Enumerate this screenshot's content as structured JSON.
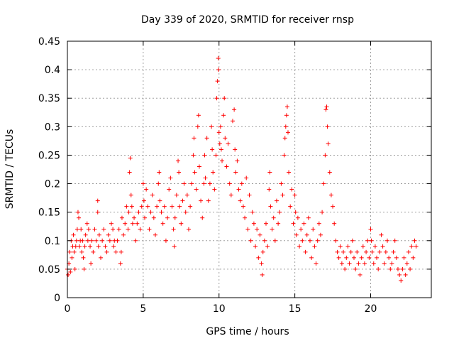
{
  "chart_data": {
    "type": "scatter",
    "title": "Day 339 of 2020, SRMTID for receiver rnsp",
    "xlabel": "GPS time / hours",
    "ylabel": "SRMTID / TECUs",
    "xlim": [
      0,
      24
    ],
    "ylim": [
      0,
      0.45
    ],
    "xticks": [
      0,
      5,
      10,
      15,
      20
    ],
    "yticks": [
      0,
      0.05,
      0.1,
      0.15,
      0.2,
      0.25,
      0.3,
      0.35,
      0.4,
      0.45
    ],
    "xtick_labels": [
      "0",
      "5",
      "10",
      "15",
      "20"
    ],
    "ytick_labels": [
      "0",
      "0.05",
      "0.1",
      "0.15",
      "0.2",
      "0.25",
      "0.3",
      "0.35",
      "0.4",
      "0.45"
    ],
    "grid": true,
    "marker": "+",
    "color": "#ff0000",
    "series": [
      {
        "name": "SRMTID",
        "points": [
          [
            0.0,
            0.05
          ],
          [
            0.05,
            0.04
          ],
          [
            0.1,
            0.06
          ],
          [
            0.15,
            0.08
          ],
          [
            0.2,
            0.045
          ],
          [
            0.25,
            0.1
          ],
          [
            0.3,
            0.07
          ],
          [
            0.35,
            0.09
          ],
          [
            0.4,
            0.11
          ],
          [
            0.45,
            0.08
          ],
          [
            0.5,
            0.05
          ],
          [
            0.55,
            0.09
          ],
          [
            0.6,
            0.1
          ],
          [
            0.65,
            0.12
          ],
          [
            0.7,
            0.15
          ],
          [
            0.75,
            0.14
          ],
          [
            0.8,
            0.09
          ],
          [
            0.85,
            0.1
          ],
          [
            0.9,
            0.12
          ],
          [
            0.95,
            0.08
          ],
          [
            1.0,
            0.1
          ],
          [
            1.05,
            0.07
          ],
          [
            1.1,
            0.05
          ],
          [
            1.15,
            0.09
          ],
          [
            1.2,
            0.11
          ],
          [
            1.3,
            0.13
          ],
          [
            1.35,
            0.1
          ],
          [
            1.4,
            0.12
          ],
          [
            1.5,
            0.09
          ],
          [
            1.55,
            0.06
          ],
          [
            1.6,
            0.1
          ],
          [
            1.7,
            0.08
          ],
          [
            1.8,
            0.12
          ],
          [
            1.9,
            0.1
          ],
          [
            2.0,
            0.15
          ],
          [
            2.0,
            0.17
          ],
          [
            2.05,
            0.09
          ],
          [
            2.1,
            0.11
          ],
          [
            2.2,
            0.07
          ],
          [
            2.3,
            0.1
          ],
          [
            2.4,
            0.12
          ],
          [
            2.5,
            0.09
          ],
          [
            2.6,
            0.08
          ],
          [
            2.7,
            0.11
          ],
          [
            2.8,
            0.1
          ],
          [
            2.9,
            0.13
          ],
          [
            3.0,
            0.12
          ],
          [
            3.05,
            0.09
          ],
          [
            3.1,
            0.1
          ],
          [
            3.2,
            0.08
          ],
          [
            3.3,
            0.1
          ],
          [
            3.4,
            0.12
          ],
          [
            3.5,
            0.06
          ],
          [
            3.55,
            0.08
          ],
          [
            3.6,
            0.14
          ],
          [
            3.7,
            0.11
          ],
          [
            3.8,
            0.13
          ],
          [
            3.9,
            0.16
          ],
          [
            4.0,
            0.12
          ],
          [
            4.05,
            0.15
          ],
          [
            4.1,
            0.22
          ],
          [
            4.15,
            0.245
          ],
          [
            4.2,
            0.18
          ],
          [
            4.25,
            0.16
          ],
          [
            4.3,
            0.13
          ],
          [
            4.4,
            0.14
          ],
          [
            4.5,
            0.1
          ],
          [
            4.6,
            0.13
          ],
          [
            4.7,
            0.15
          ],
          [
            4.8,
            0.12
          ],
          [
            4.9,
            0.16
          ],
          [
            5.0,
            0.2
          ],
          [
            5.05,
            0.17
          ],
          [
            5.1,
            0.14
          ],
          [
            5.2,
            0.19
          ],
          [
            5.3,
            0.16
          ],
          [
            5.4,
            0.12
          ],
          [
            5.5,
            0.15
          ],
          [
            5.6,
            0.18
          ],
          [
            5.7,
            0.14
          ],
          [
            5.8,
            0.11
          ],
          [
            5.9,
            0.16
          ],
          [
            6.0,
            0.2
          ],
          [
            6.05,
            0.22
          ],
          [
            6.1,
            0.17
          ],
          [
            6.2,
            0.15
          ],
          [
            6.3,
            0.13
          ],
          [
            6.4,
            0.16
          ],
          [
            6.5,
            0.1
          ],
          [
            6.6,
            0.14
          ],
          [
            6.7,
            0.19
          ],
          [
            6.8,
            0.21
          ],
          [
            6.9,
            0.16
          ],
          [
            7.0,
            0.12
          ],
          [
            7.05,
            0.09
          ],
          [
            7.1,
            0.14
          ],
          [
            7.2,
            0.18
          ],
          [
            7.3,
            0.24
          ],
          [
            7.35,
            0.22
          ],
          [
            7.4,
            0.16
          ],
          [
            7.5,
            0.13
          ],
          [
            7.6,
            0.17
          ],
          [
            7.7,
            0.2
          ],
          [
            7.8,
            0.15
          ],
          [
            7.9,
            0.18
          ],
          [
            8.0,
            0.12
          ],
          [
            8.1,
            0.16
          ],
          [
            8.2,
            0.2
          ],
          [
            8.3,
            0.25
          ],
          [
            8.35,
            0.28
          ],
          [
            8.4,
            0.22
          ],
          [
            8.5,
            0.19
          ],
          [
            8.6,
            0.3
          ],
          [
            8.65,
            0.32
          ],
          [
            8.7,
            0.23
          ],
          [
            8.8,
            0.17
          ],
          [
            8.9,
            0.14
          ],
          [
            9.0,
            0.2
          ],
          [
            9.05,
            0.25
          ],
          [
            9.1,
            0.21
          ],
          [
            9.2,
            0.28
          ],
          [
            9.3,
            0.17
          ],
          [
            9.4,
            0.2
          ],
          [
            9.5,
            0.3
          ],
          [
            9.55,
            0.26
          ],
          [
            9.6,
            0.22
          ],
          [
            9.7,
            0.19
          ],
          [
            9.8,
            0.25
          ],
          [
            9.85,
            0.35
          ],
          [
            9.9,
            0.38
          ],
          [
            9.95,
            0.42
          ],
          [
            9.97,
            0.4
          ],
          [
            10.0,
            0.29
          ],
          [
            10.05,
            0.27
          ],
          [
            10.1,
            0.3
          ],
          [
            10.15,
            0.26
          ],
          [
            10.2,
            0.24
          ],
          [
            10.3,
            0.32
          ],
          [
            10.35,
            0.35
          ],
          [
            10.4,
            0.28
          ],
          [
            10.5,
            0.23
          ],
          [
            10.6,
            0.27
          ],
          [
            10.7,
            0.2
          ],
          [
            10.8,
            0.18
          ],
          [
            10.9,
            0.31
          ],
          [
            11.0,
            0.33
          ],
          [
            11.05,
            0.26
          ],
          [
            11.1,
            0.22
          ],
          [
            11.2,
            0.24
          ],
          [
            11.3,
            0.19
          ],
          [
            11.4,
            0.17
          ],
          [
            11.5,
            0.2
          ],
          [
            11.6,
            0.16
          ],
          [
            11.7,
            0.14
          ],
          [
            11.8,
            0.21
          ],
          [
            11.9,
            0.12
          ],
          [
            12.0,
            0.18
          ],
          [
            12.1,
            0.1
          ],
          [
            12.2,
            0.15
          ],
          [
            12.3,
            0.13
          ],
          [
            12.4,
            0.09
          ],
          [
            12.5,
            0.12
          ],
          [
            12.6,
            0.07
          ],
          [
            12.7,
            0.11
          ],
          [
            12.8,
            0.06
          ],
          [
            12.85,
            0.04
          ],
          [
            12.9,
            0.08
          ],
          [
            13.0,
            0.1
          ],
          [
            13.1,
            0.13
          ],
          [
            13.2,
            0.09
          ],
          [
            13.3,
            0.19
          ],
          [
            13.35,
            0.22
          ],
          [
            13.4,
            0.16
          ],
          [
            13.5,
            0.12
          ],
          [
            13.6,
            0.14
          ],
          [
            13.7,
            0.1
          ],
          [
            13.8,
            0.17
          ],
          [
            13.9,
            0.13
          ],
          [
            14.0,
            0.15
          ],
          [
            14.1,
            0.2
          ],
          [
            14.2,
            0.18
          ],
          [
            14.3,
            0.25
          ],
          [
            14.35,
            0.28
          ],
          [
            14.4,
            0.3
          ],
          [
            14.45,
            0.32
          ],
          [
            14.5,
            0.335
          ],
          [
            14.55,
            0.29
          ],
          [
            14.6,
            0.22
          ],
          [
            14.7,
            0.16
          ],
          [
            14.8,
            0.19
          ],
          [
            14.9,
            0.13
          ],
          [
            15.0,
            0.18
          ],
          [
            15.05,
            0.15
          ],
          [
            15.1,
            0.11
          ],
          [
            15.2,
            0.14
          ],
          [
            15.3,
            0.09
          ],
          [
            15.4,
            0.12
          ],
          [
            15.5,
            0.1
          ],
          [
            15.6,
            0.13
          ],
          [
            15.7,
            0.08
          ],
          [
            15.8,
            0.11
          ],
          [
            15.9,
            0.14
          ],
          [
            16.0,
            0.1
          ],
          [
            16.1,
            0.07
          ],
          [
            16.2,
            0.12
          ],
          [
            16.3,
            0.09
          ],
          [
            16.4,
            0.06
          ],
          [
            16.5,
            0.1
          ],
          [
            16.6,
            0.13
          ],
          [
            16.7,
            0.11
          ],
          [
            16.8,
            0.15
          ],
          [
            16.9,
            0.2
          ],
          [
            17.0,
            0.25
          ],
          [
            17.05,
            0.33
          ],
          [
            17.1,
            0.335
          ],
          [
            17.15,
            0.3
          ],
          [
            17.2,
            0.27
          ],
          [
            17.3,
            0.22
          ],
          [
            17.4,
            0.18
          ],
          [
            17.5,
            0.16
          ],
          [
            17.6,
            0.13
          ],
          [
            17.7,
            0.1
          ],
          [
            17.8,
            0.08
          ],
          [
            17.9,
            0.07
          ],
          [
            18.0,
            0.09
          ],
          [
            18.1,
            0.06
          ],
          [
            18.2,
            0.08
          ],
          [
            18.3,
            0.05
          ],
          [
            18.4,
            0.07
          ],
          [
            18.5,
            0.09
          ],
          [
            18.6,
            0.06
          ],
          [
            18.7,
            0.08
          ],
          [
            18.8,
            0.1
          ],
          [
            18.9,
            0.07
          ],
          [
            19.0,
            0.05
          ],
          [
            19.1,
            0.08
          ],
          [
            19.2,
            0.06
          ],
          [
            19.3,
            0.04
          ],
          [
            19.4,
            0.07
          ],
          [
            19.5,
            0.09
          ],
          [
            19.6,
            0.06
          ],
          [
            19.7,
            0.08
          ],
          [
            19.8,
            0.1
          ],
          [
            19.9,
            0.07
          ],
          [
            20.0,
            0.12
          ],
          [
            20.05,
            0.1
          ],
          [
            20.1,
            0.08
          ],
          [
            20.2,
            0.06
          ],
          [
            20.3,
            0.09
          ],
          [
            20.4,
            0.07
          ],
          [
            20.5,
            0.05
          ],
          [
            20.6,
            0.08
          ],
          [
            20.7,
            0.11
          ],
          [
            20.8,
            0.09
          ],
          [
            20.9,
            0.06
          ],
          [
            21.0,
            0.08
          ],
          [
            21.1,
            0.1
          ],
          [
            21.2,
            0.07
          ],
          [
            21.3,
            0.05
          ],
          [
            21.4,
            0.06
          ],
          [
            21.5,
            0.08
          ],
          [
            21.6,
            0.1
          ],
          [
            21.7,
            0.07
          ],
          [
            21.8,
            0.05
          ],
          [
            21.9,
            0.04
          ],
          [
            22.0,
            0.03
          ],
          [
            22.1,
            0.05
          ],
          [
            22.2,
            0.07
          ],
          [
            22.3,
            0.04
          ],
          [
            22.4,
            0.06
          ],
          [
            22.5,
            0.08
          ],
          [
            22.6,
            0.05
          ],
          [
            22.7,
            0.09
          ],
          [
            22.8,
            0.07
          ],
          [
            22.9,
            0.1
          ],
          [
            23.0,
            0.09
          ]
        ]
      }
    ]
  }
}
